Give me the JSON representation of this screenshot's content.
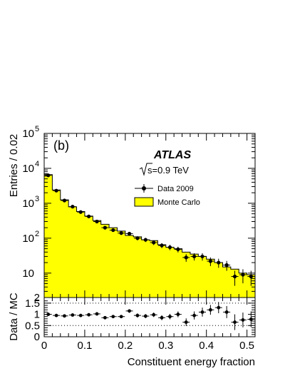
{
  "chart_data": [
    {
      "type": "histogram",
      "panel_label": "(b)",
      "experiment": "ATLAS",
      "energy_label": "s=0.9 TeV",
      "ylabel": "Entries / 0.02",
      "yscale": "log",
      "ylim": [
        2,
        100000
      ],
      "xlim": [
        0,
        0.52
      ],
      "bin_edges": [
        0,
        0.02,
        0.04,
        0.06,
        0.08,
        0.1,
        0.12,
        0.14,
        0.16,
        0.18,
        0.2,
        0.22,
        0.24,
        0.26,
        0.28,
        0.3,
        0.32,
        0.34,
        0.36,
        0.38,
        0.4,
        0.42,
        0.44,
        0.46,
        0.48,
        0.5,
        0.52
      ],
      "y_ticks": [
        10,
        100,
        1000,
        10000,
        100000
      ],
      "y_tick_labels": [
        "10",
        "10",
        "10",
        "10",
        "10"
      ],
      "y_tick_exponents": [
        "",
        "2",
        "3",
        "4",
        "5"
      ],
      "series": [
        {
          "name": "Data 2009",
          "style": "points-with-errors",
          "x": [
            0.01,
            0.03,
            0.05,
            0.07,
            0.09,
            0.11,
            0.13,
            0.15,
            0.17,
            0.19,
            0.21,
            0.23,
            0.25,
            0.27,
            0.29,
            0.31,
            0.33,
            0.35,
            0.37,
            0.39,
            0.41,
            0.43,
            0.45,
            0.47,
            0.49,
            0.51
          ],
          "values": [
            6300,
            2300,
            1200,
            800,
            560,
            420,
            300,
            200,
            170,
            140,
            135,
            100,
            90,
            75,
            62,
            55,
            48,
            28,
            30,
            30,
            22,
            20,
            17,
            8,
            9,
            8
          ]
        },
        {
          "name": "Monte Carlo",
          "style": "filled-step",
          "color": "#ffff00",
          "values": [
            6600,
            2400,
            1250,
            790,
            580,
            430,
            320,
            250,
            200,
            160,
            120,
            110,
            90,
            85,
            65,
            55,
            50,
            40,
            35,
            30,
            25,
            20,
            15,
            13,
            10,
            9
          ]
        }
      ],
      "legend_placement": "upper-right"
    },
    {
      "type": "scatter",
      "panel": "ratio",
      "ylabel": "Data / MC",
      "xlabel": "Constituent energy fraction",
      "xlim": [
        0,
        0.52
      ],
      "ylim": [
        0,
        1.75
      ],
      "x_ticks": [
        0,
        0.1,
        0.2,
        0.3,
        0.4,
        0.5
      ],
      "x_tick_labels": [
        "0",
        "0.1",
        "0.2",
        "0.3",
        "0.4",
        "0.5"
      ],
      "y_ticks": [
        0,
        0.5,
        1,
        1.5
      ],
      "y_tick_labels": [
        "0",
        "0.5",
        "1",
        "1.5"
      ],
      "reference_lines": [
        0.5,
        1.5
      ],
      "series": [
        {
          "name": "",
          "x": [
            0.01,
            0.03,
            0.05,
            0.07,
            0.09,
            0.11,
            0.13,
            0.15,
            0.17,
            0.19,
            0.21,
            0.23,
            0.25,
            0.27,
            0.29,
            0.31,
            0.33,
            0.35,
            0.37,
            0.39,
            0.41,
            0.43,
            0.45,
            0.47,
            0.49,
            0.51
          ],
          "values": [
            1.0,
            0.95,
            0.93,
            0.97,
            0.95,
            0.98,
            1.02,
            0.85,
            0.9,
            0.9,
            1.15,
            0.95,
            0.92,
            0.98,
            0.85,
            0.9,
            1.0,
            0.65,
            0.95,
            1.1,
            1.2,
            1.3,
            1.1,
            0.65,
            0.75,
            0.78
          ],
          "errors": [
            0.02,
            0.02,
            0.03,
            0.03,
            0.04,
            0.05,
            0.05,
            0.06,
            0.07,
            0.07,
            0.08,
            0.09,
            0.09,
            0.1,
            0.11,
            0.12,
            0.13,
            0.17,
            0.18,
            0.2,
            0.22,
            0.25,
            0.27,
            0.35,
            0.33,
            0.35
          ]
        }
      ]
    }
  ]
}
